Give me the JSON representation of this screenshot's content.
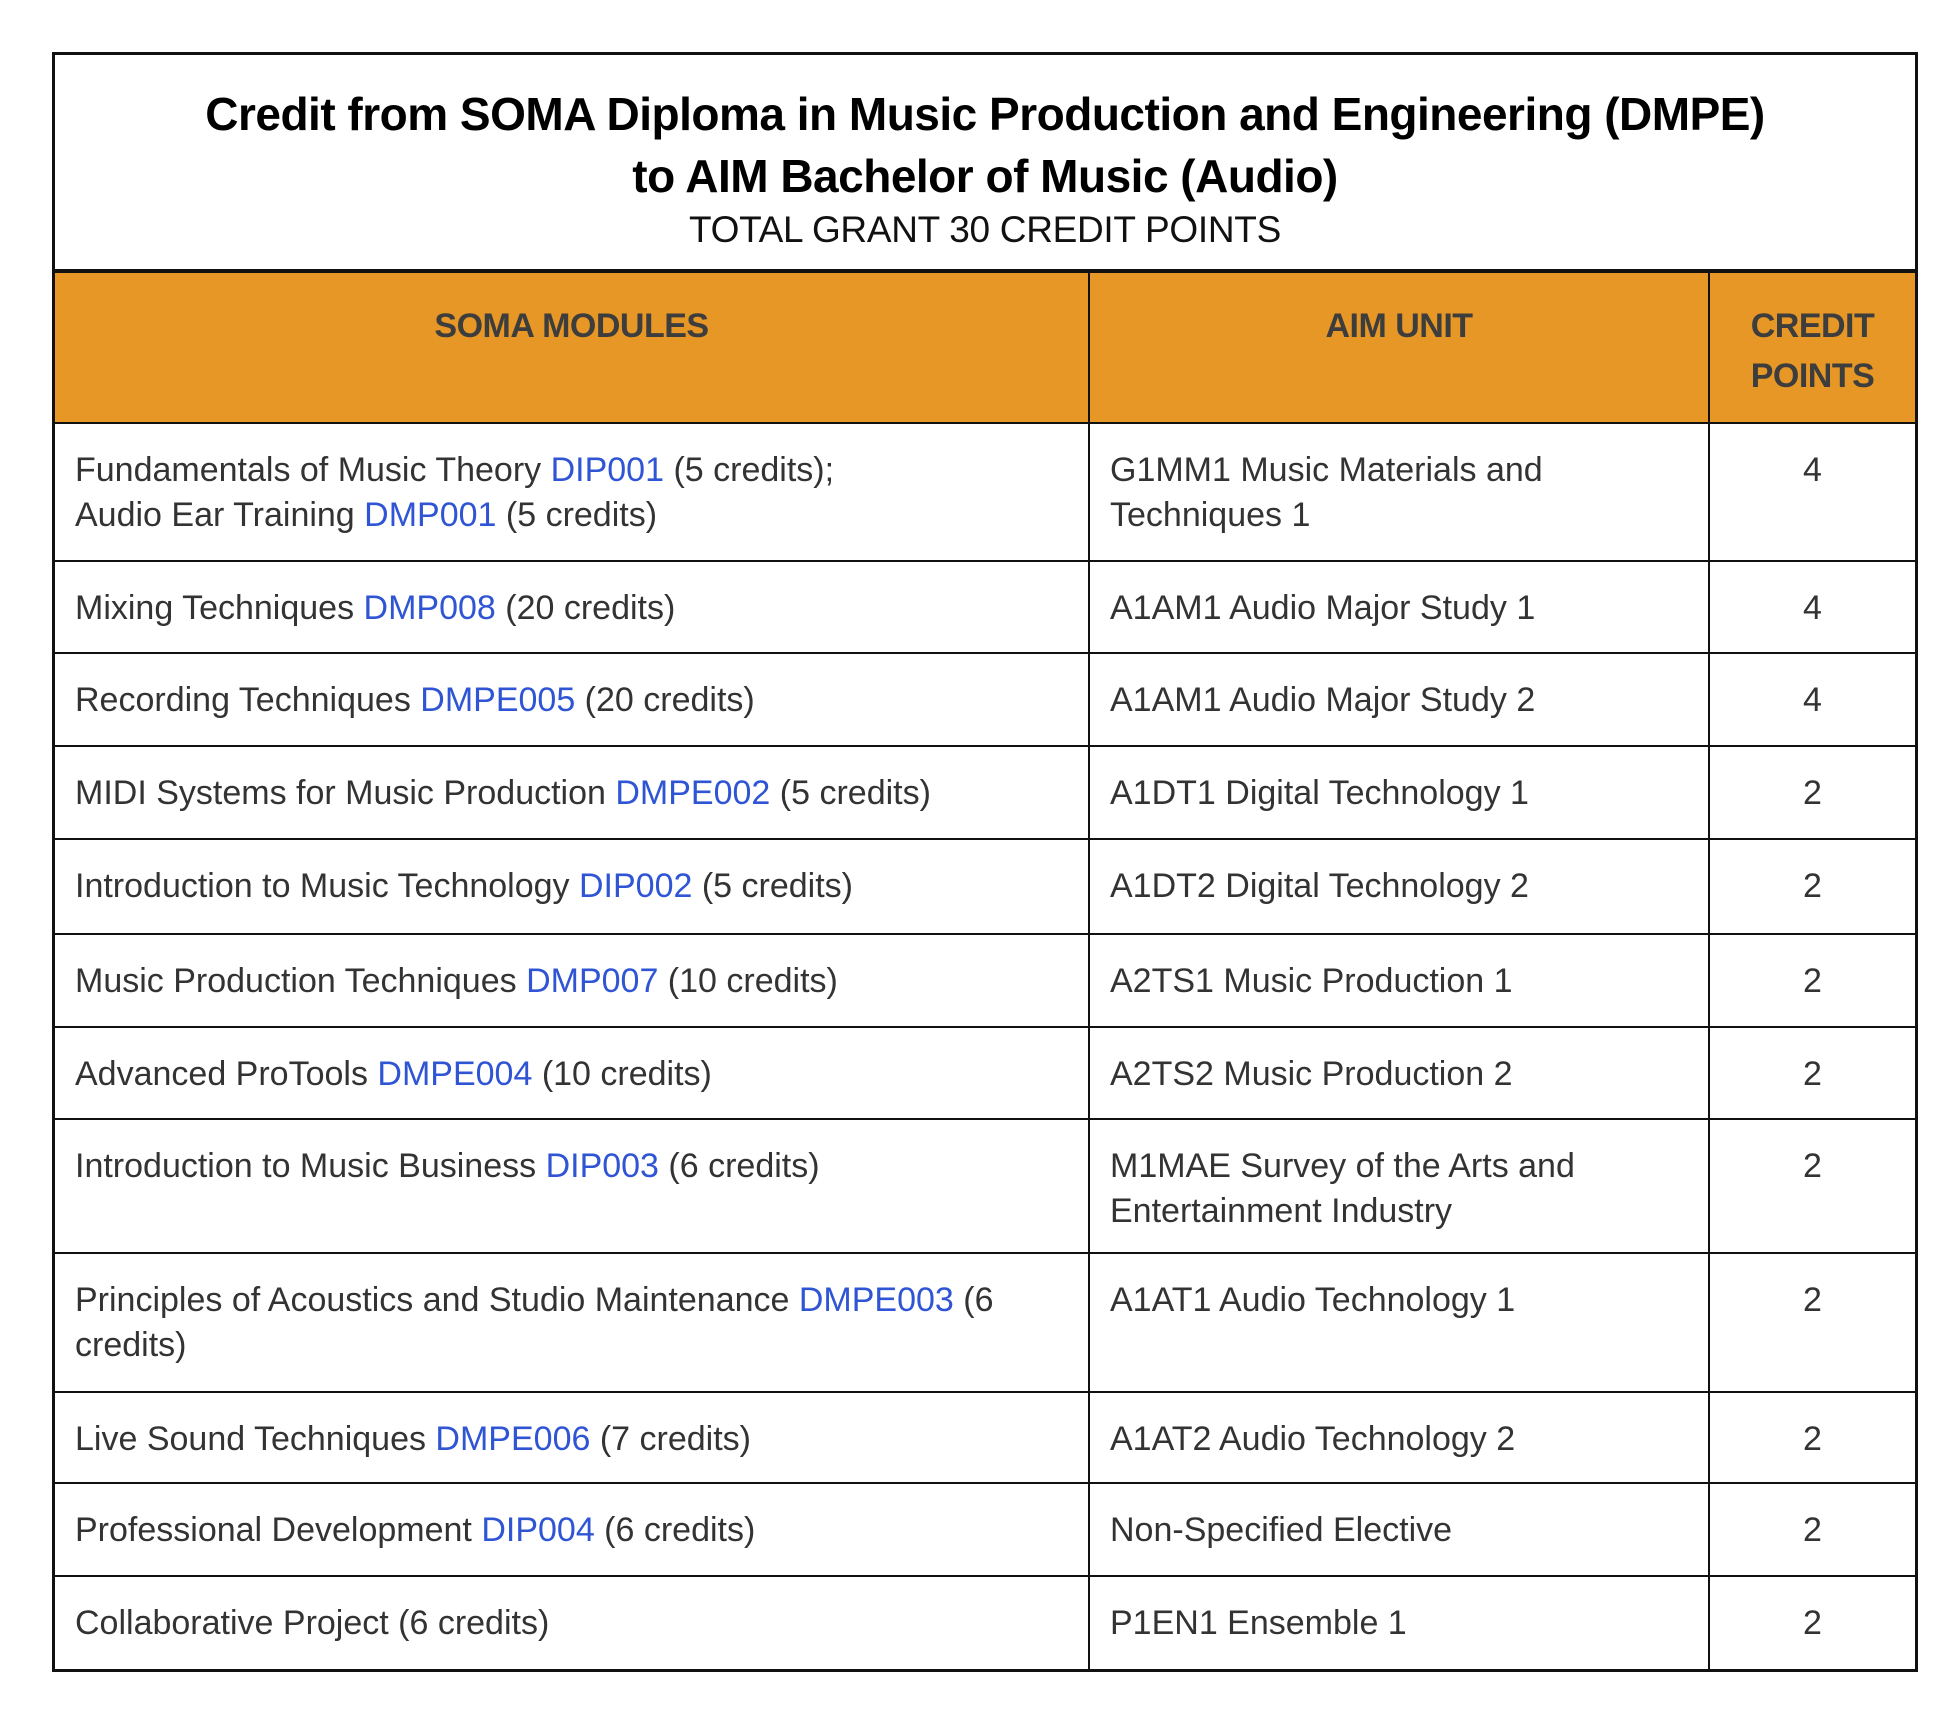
{
  "title_line1": "Credit from SOMA Diploma in Music Production and Engineering (DMPE)",
  "title_line2": "to AIM Bachelor of Music (Audio)",
  "subtitle": "TOTAL GRANT 30 CREDIT POINTS",
  "headers": {
    "soma": "SOMA MODULES",
    "aim": "AIM UNIT",
    "credit_line1": "CREDIT",
    "credit_line2": "POINTS"
  },
  "colors": {
    "header_bg": "#e69726",
    "code": "#2f55d4"
  },
  "rows": [
    {
      "soma_a": "Fundamentals of Music Theory ",
      "code_a": "DIP001",
      "rest_a": "  (5 credits);",
      "soma_b": "Audio Ear Training ",
      "code_b": "DMP001",
      "rest_b": " (5 credits)",
      "aim": "G1MM1  Music Materials and Techniques 1",
      "credit": "4"
    },
    {
      "soma_a": "Mixing Techniques ",
      "code_a": "DMP008",
      "rest_a": " (20 credits)",
      "aim": "A1AM1  Audio Major Study 1",
      "credit": "4"
    },
    {
      "soma_a": "Recording Techniques ",
      "code_a": "DMPE005",
      "rest_a": " (20 credits)",
      "aim": "A1AM1  Audio Major Study 2",
      "credit": "4"
    },
    {
      "soma_a": "MIDI Systems for Music Production ",
      "code_a": "DMPE002",
      "rest_a": " (5 credits)",
      "aim": "A1DT1  Digital Technology 1",
      "credit": "2"
    },
    {
      "soma_a": "Introduction to Music Technology ",
      "code_a": "DIP002",
      "rest_a": " (5 credits)",
      "aim": "A1DT2  Digital Technology 2",
      "credit": "2"
    },
    {
      "soma_a": "Music Production Techniques ",
      "code_a": "DMP007",
      "rest_a": " (10 credits)",
      "aim": "A2TS1  Music Production 1",
      "credit": "2"
    },
    {
      "soma_a": "Advanced ProTools ",
      "code_a": "DMPE004",
      "rest_a": " (10 credits)",
      "aim": "A2TS2  Music Production 2",
      "credit": "2"
    },
    {
      "soma_a": "Introduction to Music Business ",
      "code_a": "DIP003",
      "rest_a": " (6 credits)",
      "aim": "M1MAE Survey of the Arts and Entertainment Industry",
      "credit": "2"
    },
    {
      "soma_a": "Principles of Acoustics and Studio Maintenance ",
      "code_a": "DMPE003",
      "rest_a": " (6 credits)",
      "aim": "A1AT1  Audio Technology 1",
      "credit": "2"
    },
    {
      "soma_a": "Live Sound Techniques ",
      "code_a": "DMPE006",
      "rest_a": " (7 credits)",
      "aim": "A1AT2   Audio Technology 2",
      "credit": "2"
    },
    {
      "soma_a": "Professional Development ",
      "code_a": "DIP004",
      "rest_a": " (6 credits)",
      "aim": "Non-Specified Elective",
      "credit": "2"
    },
    {
      "soma_a": "Collaborative Project (6 credits)",
      "aim": "P1EN1  Ensemble 1",
      "credit": "2"
    }
  ]
}
